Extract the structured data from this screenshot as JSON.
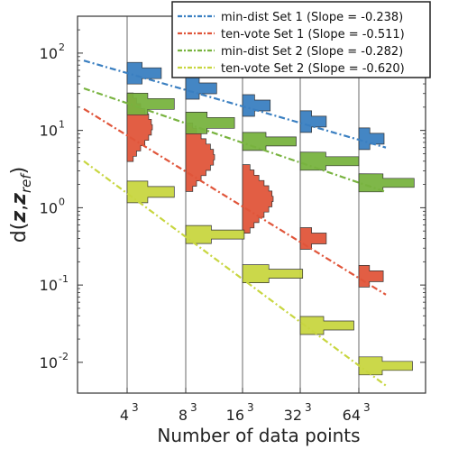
{
  "chart_data": {
    "type": "scatter",
    "xlabel": "Number of data points",
    "ylabel": {
      "base": "d(",
      "bold": "z",
      "sep": ",",
      "bold2": "z",
      "sub": "ref",
      "end": ")"
    },
    "x_ticks": [
      {
        "base": "4",
        "exp": "3"
      },
      {
        "base": "8",
        "exp": "3"
      },
      {
        "base": "16",
        "exp": "3"
      },
      {
        "base": "32",
        "exp": "3"
      },
      {
        "base": "64",
        "exp": "3"
      }
    ],
    "y_ticks": [
      {
        "base": "10",
        "exp": "-2"
      },
      {
        "base": "10",
        "exp": "-1"
      },
      {
        "base": "10",
        "exp": "0"
      },
      {
        "base": "10",
        "exp": "1"
      },
      {
        "base": "10",
        "exp": "2"
      }
    ],
    "ylim": [
      0.004,
      300
    ],
    "y_scale": "log",
    "legend_position": "top-right",
    "series": [
      {
        "name": "min-dist Set 1 (Slope = -0.238)",
        "color": "#3a7fc1",
        "line_from": 80,
        "line_to": 6,
        "centers": [
          55,
          35,
          21,
          13,
          7.8
        ],
        "widths": [
          18,
          14,
          10,
          8,
          7
        ]
      },
      {
        "name": "ten-vote Set 1 (Slope = -0.511)",
        "color": "#e0553a",
        "line_from": 19,
        "line_to": 0.075,
        "centers": [
          11,
          4.5,
          1.3,
          0.4,
          0.13
        ],
        "widths": [
          8,
          12,
          14,
          12,
          10
        ]
      },
      {
        "name": "min-dist Set 2 (Slope = -0.282)",
        "color": "#78b33f",
        "line_from": 35,
        "line_to": 1.6,
        "centers": [
          22,
          12.5,
          7.2,
          4.0,
          2.1
        ],
        "widths": [
          18,
          20,
          26,
          32,
          28
        ]
      },
      {
        "name": "ten-vote Set 2 (Slope = -0.620)",
        "color": "#c8d640",
        "line_from": 4,
        "line_to": 0.005,
        "centers": [
          1.6,
          0.45,
          0.14,
          0.03,
          0.009
        ],
        "widths": [
          18,
          32,
          34,
          26,
          26
        ]
      }
    ]
  }
}
